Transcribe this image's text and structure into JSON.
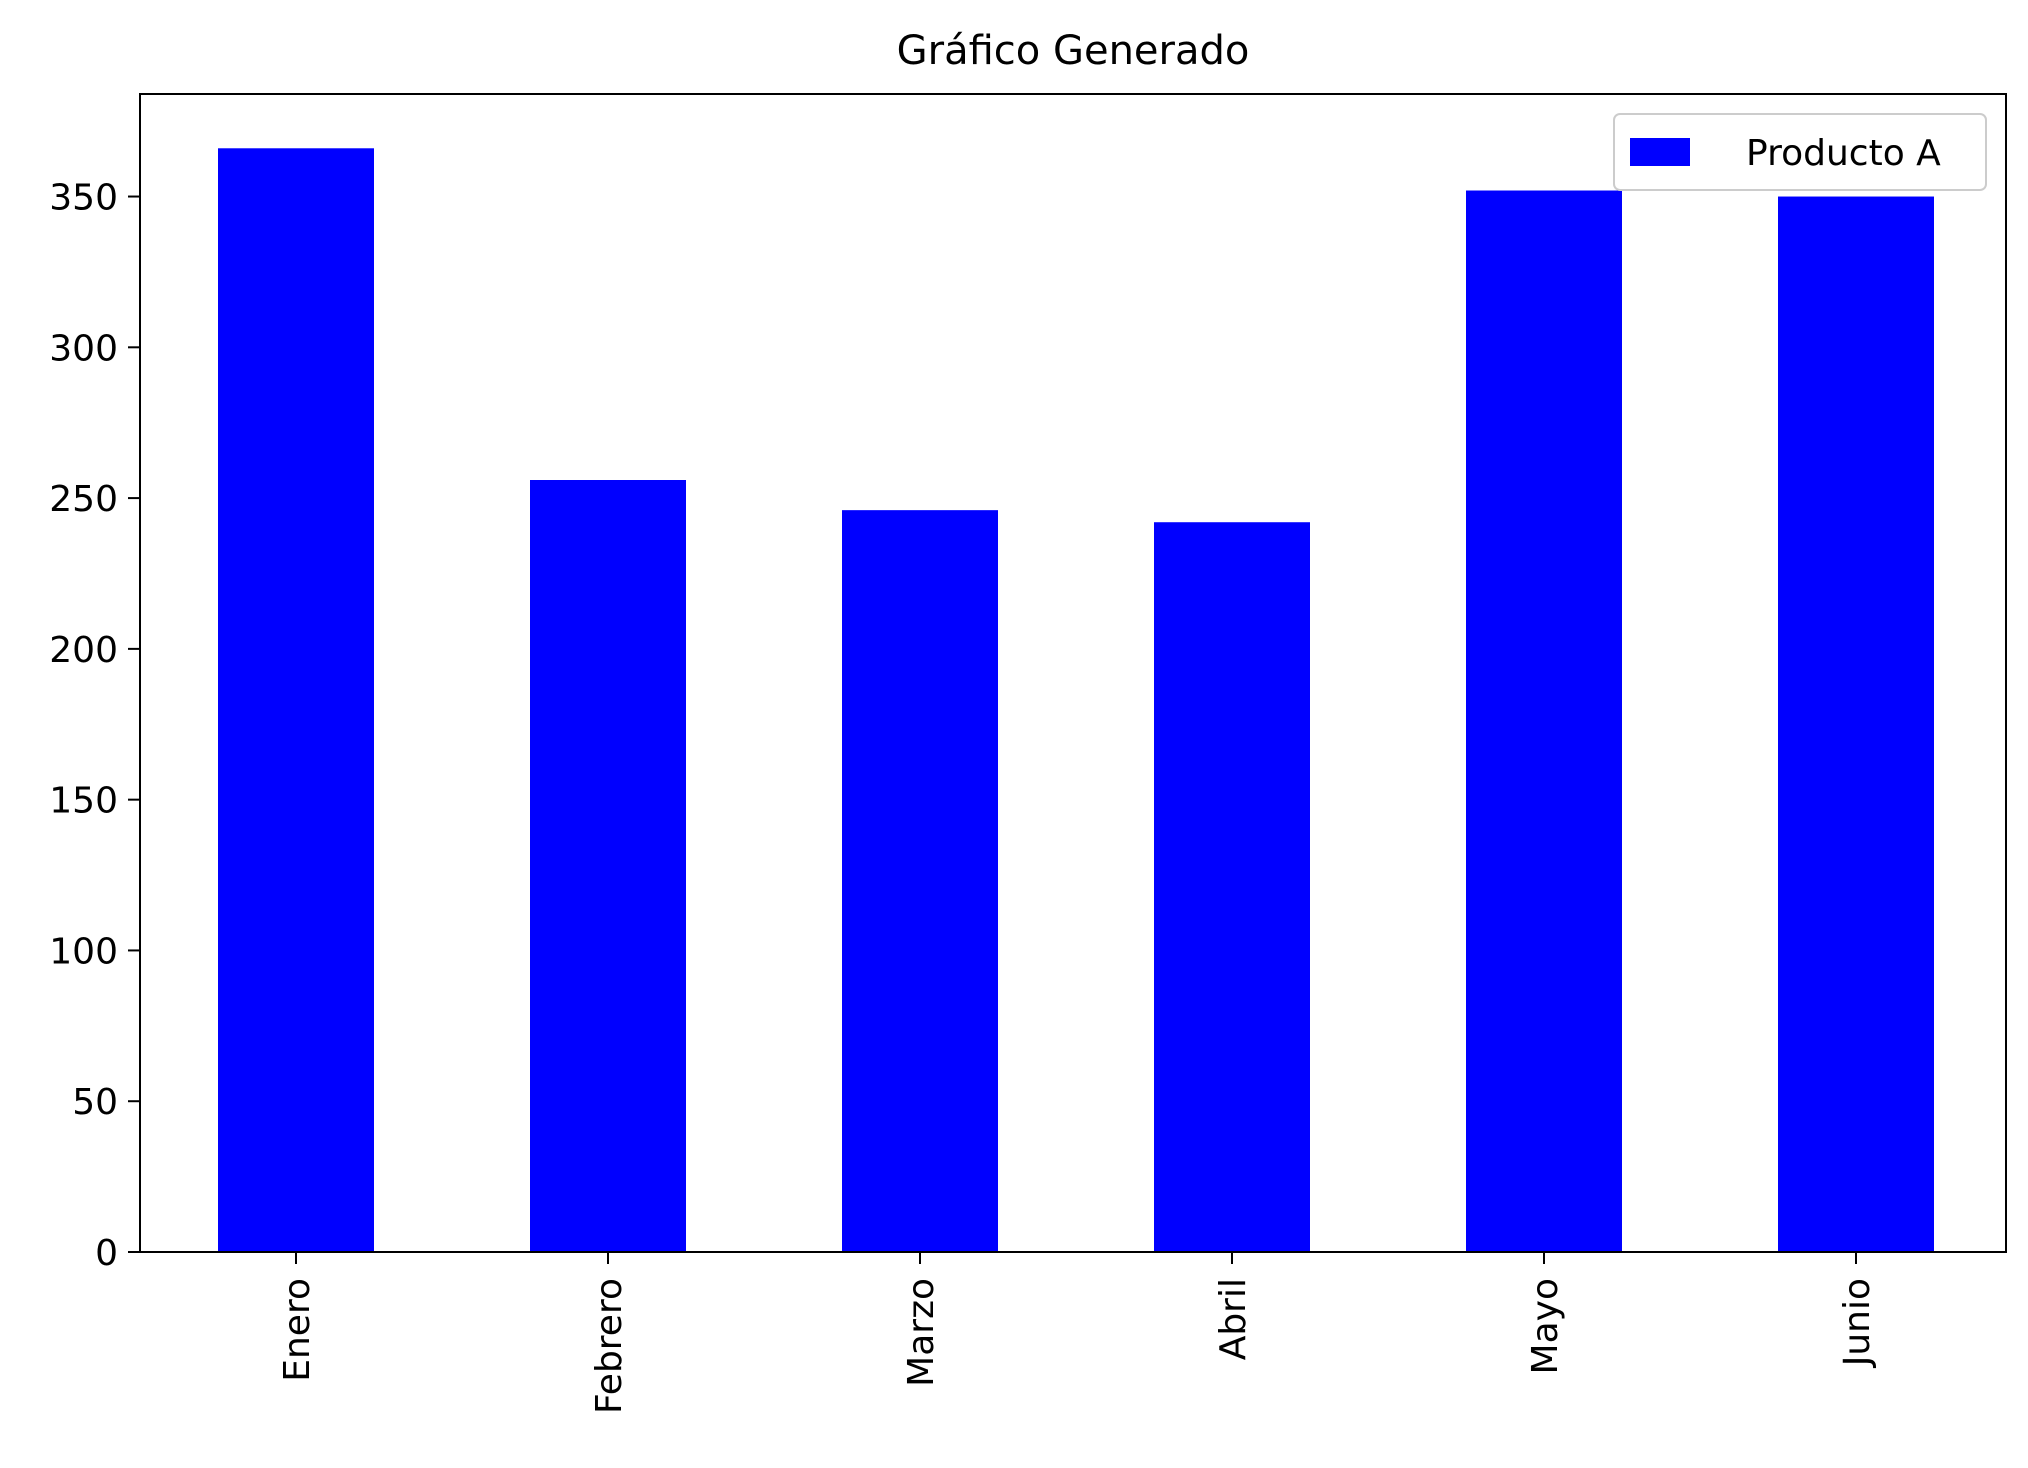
{
  "chart_data": {
    "type": "bar",
    "title": "Gráfico Generado",
    "xlabel": "",
    "ylabel": "",
    "categories": [
      "Enero",
      "Febrero",
      "Marzo",
      "Abril",
      "Mayo",
      "Junio"
    ],
    "series": [
      {
        "name": "Producto A",
        "values": [
          366,
          256,
          246,
          242,
          352,
          350
        ],
        "color": "#0000ff"
      }
    ],
    "ylim": [
      0,
      384
    ],
    "yticks": [
      0,
      50,
      100,
      150,
      200,
      250,
      300,
      350
    ],
    "grid": false,
    "legend": "top-right"
  }
}
